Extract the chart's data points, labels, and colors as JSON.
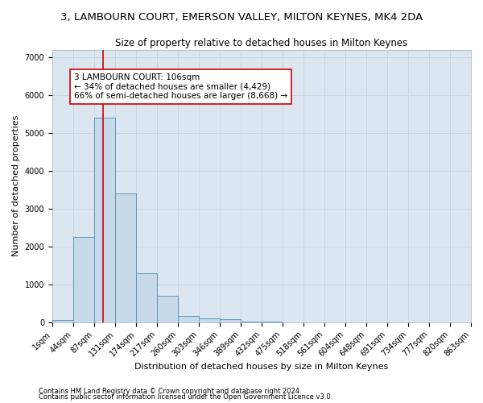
{
  "title": "3, LAMBOURN COURT, EMERSON VALLEY, MILTON KEYNES, MK4 2DA",
  "subtitle": "Size of property relative to detached houses in Milton Keynes",
  "xlabel": "Distribution of detached houses by size in Milton Keynes",
  "ylabel": "Number of detached properties",
  "footnote1": "Contains HM Land Registry data © Crown copyright and database right 2024.",
  "footnote2": "Contains public sector information licensed under the Open Government Licence v3.0.",
  "bar_edges": [
    1,
    44,
    87,
    131,
    174,
    217,
    260,
    303,
    346,
    389,
    432,
    475,
    518,
    561,
    604,
    648,
    691,
    734,
    777,
    820,
    863
  ],
  "bar_heights": [
    50,
    2250,
    5400,
    3400,
    1300,
    700,
    170,
    100,
    70,
    10,
    5,
    2,
    1,
    0,
    0,
    0,
    0,
    0,
    0,
    0
  ],
  "bar_color": "#c8d9ea",
  "bar_edge_color": "#5a9abf",
  "bar_linewidth": 0.7,
  "vline_x": 106,
  "vline_color": "#cc0000",
  "vline_linewidth": 1.2,
  "annotation_text": "3 LAMBOURN COURT: 106sqm\n← 34% of detached houses are smaller (4,429)\n66% of semi-detached houses are larger (8,668) →",
  "annotation_box_color": "#ffffff",
  "annotation_border_color": "#cc0000",
  "grid_color": "#c8d4e0",
  "background_color": "#dce6f0",
  "ylim": [
    0,
    7200
  ],
  "yticks": [
    0,
    1000,
    2000,
    3000,
    4000,
    5000,
    6000,
    7000
  ],
  "title_fontsize": 9.5,
  "subtitle_fontsize": 8.5,
  "xlabel_fontsize": 8,
  "ylabel_fontsize": 8,
  "tick_fontsize": 7,
  "annotation_fontsize": 7.5,
  "footnote_fontsize": 6
}
